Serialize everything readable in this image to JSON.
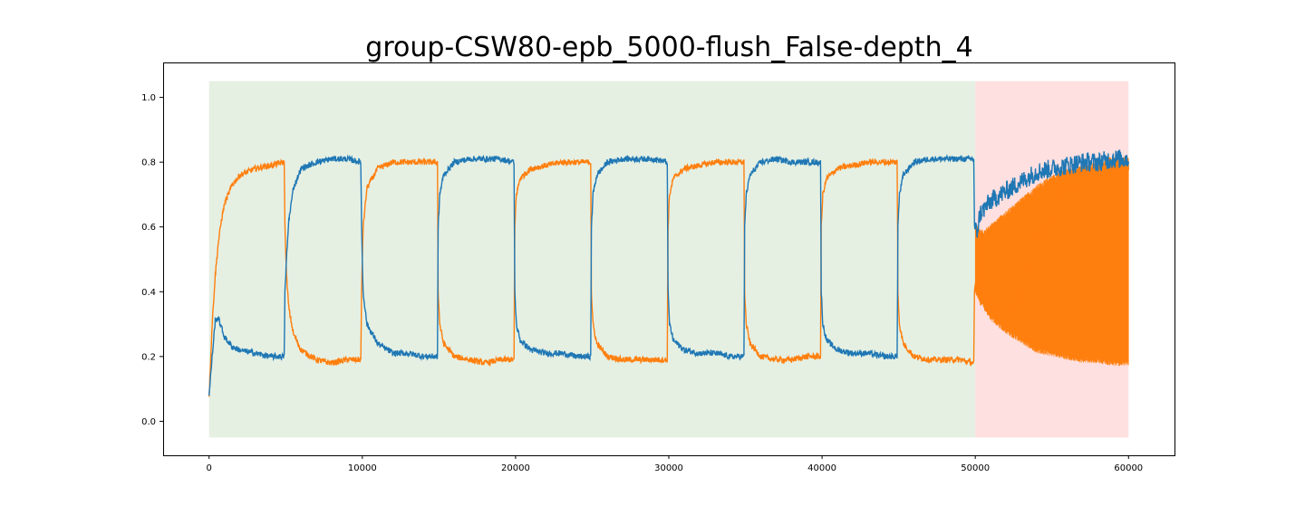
{
  "chart_data": {
    "type": "line",
    "title": "group-CSW80-epb_5000-flush_False-depth_4",
    "xlabel": "",
    "ylabel": "",
    "xlim": [
      -3000,
      63000
    ],
    "ylim": [
      -0.105,
      1.105
    ],
    "x_ticks": [
      "0",
      "10000",
      "20000",
      "30000",
      "40000",
      "50000",
      "60000"
    ],
    "y_ticks": [
      "0.0",
      "0.2",
      "0.4",
      "0.6",
      "0.8",
      "1.0"
    ],
    "grid": false,
    "legend": "none",
    "shaded_regions": [
      {
        "x": [
          0,
          50000
        ],
        "y": [
          -0.05,
          1.05
        ],
        "color": "#e5f0e3"
      },
      {
        "x": [
          50000,
          60000
        ],
        "y": [
          -0.05,
          1.05
        ],
        "color": "#fee0e0"
      }
    ],
    "series": [
      {
        "color": "#1f77b4",
        "x": [
          0,
          200,
          400,
          600,
          800,
          1000,
          1500,
          2000,
          3000,
          4000,
          4900,
          4950,
          5050,
          5200,
          5500,
          6000,
          7000,
          8000,
          9000,
          9900,
          9950,
          10050,
          10300,
          11000,
          12000,
          13000,
          14000,
          14900,
          14950,
          15050,
          15300,
          16000,
          17000,
          18000,
          19000,
          19900,
          19950,
          20050,
          20300,
          21000,
          22000,
          23000,
          24000,
          24900,
          24950,
          25050,
          25300,
          26000,
          27000,
          28000,
          29000,
          29900,
          29950,
          30050,
          30300,
          31000,
          32000,
          33000,
          34000,
          34900,
          34950,
          35050,
          35300,
          36000,
          37000,
          38000,
          39000,
          39900,
          39950,
          40050,
          40300,
          41000,
          42000,
          43000,
          44000,
          44900,
          44950,
          45050,
          45300,
          46000,
          47000,
          48000,
          49000,
          49900,
          49950,
          50100,
          50300,
          51000,
          52000,
          53000,
          54000,
          55000,
          56000,
          57000,
          58000,
          59000,
          60000
        ],
        "y": [
          0.08,
          0.2,
          0.31,
          0.32,
          0.29,
          0.26,
          0.23,
          0.22,
          0.21,
          0.2,
          0.2,
          0.4,
          0.5,
          0.62,
          0.72,
          0.78,
          0.8,
          0.81,
          0.81,
          0.8,
          0.6,
          0.4,
          0.3,
          0.24,
          0.21,
          0.21,
          0.2,
          0.2,
          0.6,
          0.7,
          0.76,
          0.8,
          0.81,
          0.81,
          0.81,
          0.8,
          0.4,
          0.3,
          0.25,
          0.22,
          0.21,
          0.21,
          0.2,
          0.2,
          0.6,
          0.7,
          0.76,
          0.8,
          0.81,
          0.81,
          0.81,
          0.8,
          0.4,
          0.3,
          0.25,
          0.22,
          0.21,
          0.21,
          0.2,
          0.2,
          0.6,
          0.7,
          0.76,
          0.8,
          0.81,
          0.8,
          0.8,
          0.8,
          0.4,
          0.3,
          0.25,
          0.22,
          0.21,
          0.21,
          0.2,
          0.2,
          0.6,
          0.7,
          0.76,
          0.8,
          0.81,
          0.81,
          0.81,
          0.81,
          0.6,
          0.58,
          0.64,
          0.68,
          0.71,
          0.74,
          0.77,
          0.78,
          0.79,
          0.8,
          0.8,
          0.81,
          0.81
        ]
      },
      {
        "color": "#ff7f0e",
        "x": [
          0,
          200,
          400,
          600,
          800,
          1000,
          1500,
          2000,
          3000,
          4000,
          4900,
          4950,
          5050,
          5200,
          5500,
          6000,
          7000,
          8000,
          9000,
          9900,
          9950,
          10050,
          10300,
          11000,
          12000,
          13000,
          14000,
          14900,
          14950,
          15050,
          15300,
          16000,
          17000,
          18000,
          19000,
          19900,
          19950,
          20050,
          20300,
          21000,
          22000,
          23000,
          24000,
          24900,
          24950,
          25050,
          25300,
          26000,
          27000,
          28000,
          29000,
          29900,
          29950,
          30050,
          30300,
          31000,
          32000,
          33000,
          34000,
          34900,
          34950,
          35050,
          35300,
          36000,
          37000,
          38000,
          39000,
          39900,
          39950,
          40050,
          40300,
          41000,
          42000,
          43000,
          44000,
          44900,
          44950,
          45050,
          45300,
          46000,
          47000,
          48000,
          49000,
          49900,
          49950,
          50100,
          50300,
          51000,
          52000,
          53000,
          54000,
          55000,
          56000,
          57000,
          58000,
          59000,
          60000
        ],
        "y": [
          0.08,
          0.3,
          0.45,
          0.55,
          0.62,
          0.67,
          0.73,
          0.76,
          0.78,
          0.79,
          0.8,
          0.6,
          0.45,
          0.35,
          0.27,
          0.22,
          0.19,
          0.18,
          0.19,
          0.19,
          0.4,
          0.6,
          0.72,
          0.78,
          0.8,
          0.8,
          0.8,
          0.8,
          0.4,
          0.3,
          0.24,
          0.2,
          0.19,
          0.18,
          0.19,
          0.19,
          0.6,
          0.7,
          0.75,
          0.78,
          0.79,
          0.8,
          0.8,
          0.8,
          0.4,
          0.3,
          0.24,
          0.2,
          0.19,
          0.19,
          0.19,
          0.19,
          0.6,
          0.7,
          0.75,
          0.78,
          0.79,
          0.8,
          0.8,
          0.8,
          0.4,
          0.3,
          0.24,
          0.2,
          0.19,
          0.19,
          0.2,
          0.2,
          0.6,
          0.7,
          0.75,
          0.78,
          0.79,
          0.8,
          0.8,
          0.8,
          0.4,
          0.3,
          0.24,
          0.2,
          0.19,
          0.19,
          0.19,
          0.18,
          0.4,
          0.44,
          0.39,
          0.35,
          0.33,
          0.4,
          0.55,
          0.65,
          0.72,
          0.76,
          0.78,
          0.79,
          0.8
        ]
      }
    ],
    "noise_band": {
      "x": [
        50000,
        50500,
        51000,
        52000,
        53000,
        54000,
        55000,
        56000,
        57000,
        58000,
        59000,
        60000
      ],
      "upper": [
        0.6,
        0.58,
        0.6,
        0.64,
        0.68,
        0.72,
        0.75,
        0.77,
        0.78,
        0.79,
        0.8,
        0.81
      ],
      "lower": [
        0.4,
        0.36,
        0.32,
        0.28,
        0.25,
        0.22,
        0.21,
        0.2,
        0.19,
        0.19,
        0.18,
        0.18
      ],
      "color": "#ff7f0e"
    }
  }
}
